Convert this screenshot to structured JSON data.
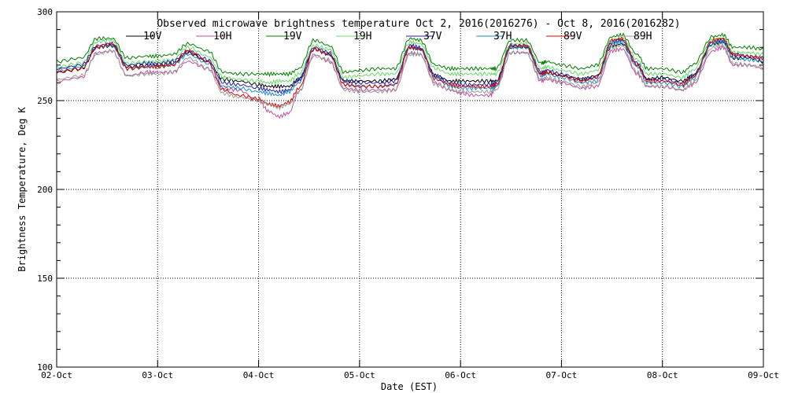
{
  "chart_data": {
    "type": "line",
    "title": "Observed microwave brightness temperature Oct  2, 2016(2016276) - Oct  8, 2016(2016282)",
    "xlabel": "Date (EST)",
    "ylabel": "Brightness Temperature, Deg K",
    "ylim": [
      100,
      300
    ],
    "xlim": [
      0,
      7
    ],
    "yticks": [
      100,
      150,
      200,
      250,
      300
    ],
    "xtick_labels": [
      "02-Oct",
      "03-Oct",
      "04-Oct",
      "05-Oct",
      "06-Oct",
      "07-Oct",
      "08-Oct",
      "09-Oct"
    ],
    "grid": true,
    "legend": "top",
    "x": [
      0.0,
      0.25,
      0.4,
      0.55,
      0.7,
      0.9,
      1.0,
      1.15,
      1.3,
      1.5,
      1.65,
      1.8,
      2.0,
      2.1,
      2.2,
      2.3,
      2.4,
      2.55,
      2.7,
      2.85,
      3.0,
      3.2,
      3.35,
      3.5,
      3.6,
      3.75,
      3.9,
      4.0,
      4.15,
      4.3,
      4.35,
      4.5,
      4.65,
      4.8,
      4.85,
      5.0,
      5.2,
      5.35,
      5.5,
      5.6,
      5.75,
      5.85,
      6.0,
      6.2,
      6.3,
      6.5,
      6.6,
      6.7,
      6.85,
      7.0
    ],
    "series": [
      {
        "name": "10V",
        "color": "#000000",
        "values": [
          266,
          268,
          280,
          281,
          269,
          270,
          270,
          271,
          277,
          272,
          262,
          261,
          259,
          258,
          258,
          258,
          262,
          279,
          276,
          261,
          261,
          261,
          262,
          280,
          279,
          264,
          261,
          261,
          261,
          261,
          261,
          280,
          280,
          265,
          266,
          264,
          262,
          264,
          281,
          282,
          270,
          262,
          263,
          261,
          264,
          282,
          283,
          274,
          274,
          272
        ]
      },
      {
        "name": "10H",
        "color": "#c050a0",
        "values": [
          261,
          263,
          277,
          278,
          264,
          266,
          266,
          266,
          272,
          268,
          257,
          256,
          250,
          244,
          241,
          243,
          255,
          276,
          272,
          257,
          256,
          256,
          256,
          277,
          276,
          260,
          256,
          254,
          253,
          253,
          258,
          277,
          277,
          261,
          262,
          260,
          257,
          258,
          278,
          279,
          265,
          258,
          258,
          256,
          259,
          278,
          280,
          270,
          270,
          268
        ]
      },
      {
        "name": "19V",
        "color": "#008000",
        "values": [
          272,
          274,
          285,
          285,
          274,
          275,
          275,
          276,
          282,
          278,
          266,
          265,
          265,
          265,
          265,
          265,
          268,
          284,
          281,
          266,
          267,
          268,
          268,
          285,
          284,
          270,
          268,
          268,
          268,
          268,
          268,
          284,
          284,
          271,
          272,
          270,
          268,
          270,
          286,
          287,
          276,
          268,
          268,
          266,
          270,
          286,
          287,
          280,
          280,
          279
        ]
      },
      {
        "name": "19H",
        "color": "#66dd66",
        "values": [
          269,
          271,
          283,
          284,
          271,
          272,
          272,
          273,
          280,
          275,
          263,
          262,
          261,
          260,
          261,
          261,
          265,
          281,
          279,
          263,
          264,
          265,
          265,
          283,
          282,
          268,
          265,
          265,
          265,
          265,
          265,
          282,
          282,
          268,
          269,
          267,
          265,
          267,
          284,
          285,
          273,
          265,
          265,
          263,
          267,
          284,
          285,
          277,
          277,
          276
        ]
      },
      {
        "name": "37V",
        "color": "#2020aa",
        "values": [
          268,
          270,
          281,
          282,
          270,
          271,
          271,
          272,
          278,
          273,
          260,
          259,
          257,
          256,
          255,
          256,
          262,
          280,
          277,
          261,
          260,
          260,
          261,
          281,
          280,
          264,
          260,
          259,
          259,
          259,
          260,
          281,
          281,
          266,
          267,
          265,
          262,
          263,
          283,
          284,
          271,
          262,
          262,
          260,
          264,
          283,
          284,
          276,
          275,
          274
        ]
      },
      {
        "name": "37H",
        "color": "#1e8cc8",
        "values": [
          267,
          269,
          280,
          281,
          268,
          269,
          269,
          270,
          276,
          271,
          258,
          257,
          255,
          254,
          253,
          255,
          260,
          279,
          276,
          259,
          258,
          258,
          259,
          280,
          279,
          263,
          258,
          257,
          257,
          257,
          258,
          280,
          280,
          264,
          265,
          263,
          260,
          261,
          282,
          283,
          269,
          260,
          260,
          258,
          262,
          282,
          283,
          274,
          273,
          272
        ]
      },
      {
        "name": "89V",
        "color": "#dd0000",
        "values": [
          266,
          268,
          280,
          282,
          268,
          269,
          269,
          270,
          278,
          272,
          256,
          253,
          251,
          248,
          247,
          249,
          257,
          279,
          276,
          259,
          258,
          258,
          259,
          280,
          279,
          262,
          259,
          258,
          258,
          258,
          259,
          281,
          281,
          265,
          266,
          264,
          261,
          263,
          284,
          285,
          270,
          261,
          261,
          259,
          263,
          284,
          285,
          276,
          275,
          274
        ]
      },
      {
        "name": "89H",
        "color": "#999999",
        "values": [
          262,
          264,
          276,
          278,
          264,
          265,
          265,
          266,
          274,
          268,
          254,
          252,
          250,
          248,
          246,
          248,
          255,
          275,
          273,
          256,
          255,
          255,
          256,
          276,
          276,
          259,
          256,
          255,
          255,
          255,
          256,
          277,
          277,
          262,
          263,
          261,
          258,
          260,
          280,
          281,
          266,
          258,
          258,
          256,
          260,
          280,
          281,
          271,
          270,
          269
        ]
      }
    ]
  }
}
